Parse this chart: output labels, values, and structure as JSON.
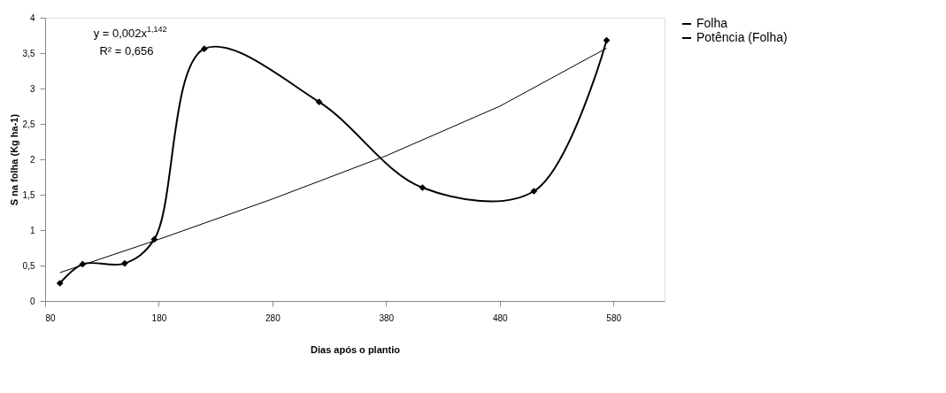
{
  "chart_data": {
    "type": "line",
    "xlabel": "Dias após o plantio",
    "ylabel": "S na folha (Kg ha-1)",
    "xlim": [
      80,
      625
    ],
    "xticks": [
      80,
      180,
      280,
      380,
      480,
      580
    ],
    "ylim": [
      0,
      4
    ],
    "yticks": [
      0,
      {
        "value": 0.5,
        "label": "0,5"
      },
      1,
      {
        "value": 1.5,
        "label": "1,5"
      },
      2,
      {
        "value": 2.5,
        "label": "2,5"
      },
      3,
      {
        "value": 3.5,
        "label": "3,5"
      },
      4
    ],
    "grid": false,
    "legend": "right",
    "series": [
      {
        "name": "Folha",
        "color": "#000000",
        "marker": "diamond",
        "x": [
          93,
          113,
          150,
          176,
          220,
          321,
          412,
          510,
          574
        ],
        "values": [
          0.25,
          0.52,
          0.53,
          0.87,
          3.56,
          2.81,
          1.6,
          1.55,
          3.68
        ]
      },
      {
        "name": "Potência (Folha)",
        "color": "#000000",
        "marker": "none",
        "x": [
          93,
          180,
          280,
          380,
          480,
          574
        ],
        "values": [
          0.4,
          0.87,
          1.44,
          2.05,
          2.75,
          3.57
        ]
      }
    ],
    "annotations": [
      "y = 0,002x$^{1,142}$",
      "R² = 0,656"
    ]
  }
}
